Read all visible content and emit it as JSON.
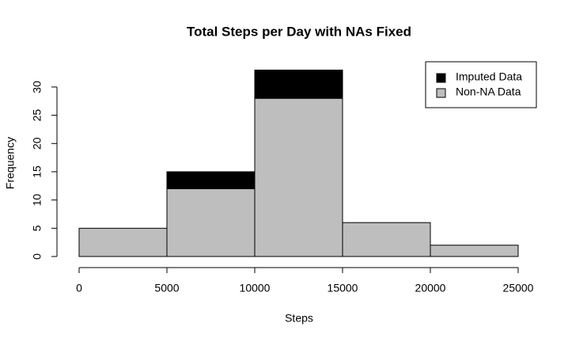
{
  "chart_data": {
    "type": "histogram",
    "title": "Total Steps per Day with NAs Fixed",
    "xlabel": "Steps",
    "ylabel": "Frequency",
    "bins": [
      0,
      5000,
      10000,
      15000,
      20000,
      25000
    ],
    "series": [
      {
        "name": "Non-NA Data",
        "color": "#bebebe",
        "values": [
          5,
          12,
          28,
          6,
          2
        ]
      },
      {
        "name": "Imputed Data",
        "color": "#000000",
        "values": [
          0,
          3,
          5,
          0,
          0
        ]
      }
    ],
    "legend_order": [
      "Imputed Data",
      "Non-NA Data"
    ],
    "legend": "top-right",
    "xlim": [
      0,
      25000
    ],
    "xticks": [
      0,
      5000,
      10000,
      15000,
      20000,
      25000
    ],
    "ylim": [
      0,
      33
    ],
    "yticks": [
      0,
      5,
      10,
      15,
      20,
      25,
      30
    ]
  }
}
